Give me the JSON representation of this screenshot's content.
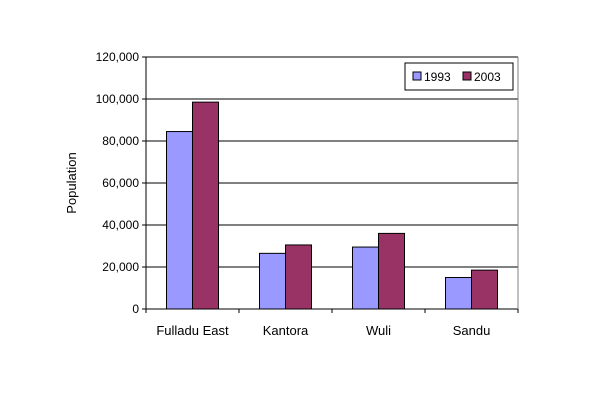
{
  "chart_data": {
    "type": "bar",
    "title": "",
    "xlabel": "",
    "ylabel": "Population",
    "ylim": [
      0,
      120000
    ],
    "yticks": [
      0,
      20000,
      40000,
      60000,
      80000,
      100000,
      120000
    ],
    "ytick_labels": [
      "0",
      "20,000",
      "40,000",
      "60,000",
      "80,000",
      "100,000",
      "120,000"
    ],
    "categories": [
      "Fulladu East",
      "Kantora",
      "Wuli",
      "Sandu"
    ],
    "series": [
      {
        "name": "1993",
        "color": "#9999FF",
        "values": [
          84500,
          26500,
          29500,
          15000
        ]
      },
      {
        "name": "2003",
        "color": "#993366",
        "values": [
          98500,
          30500,
          36000,
          18500
        ]
      }
    ],
    "grid": true,
    "legend_position": "top-right",
    "plot_background": "#ffffff"
  }
}
